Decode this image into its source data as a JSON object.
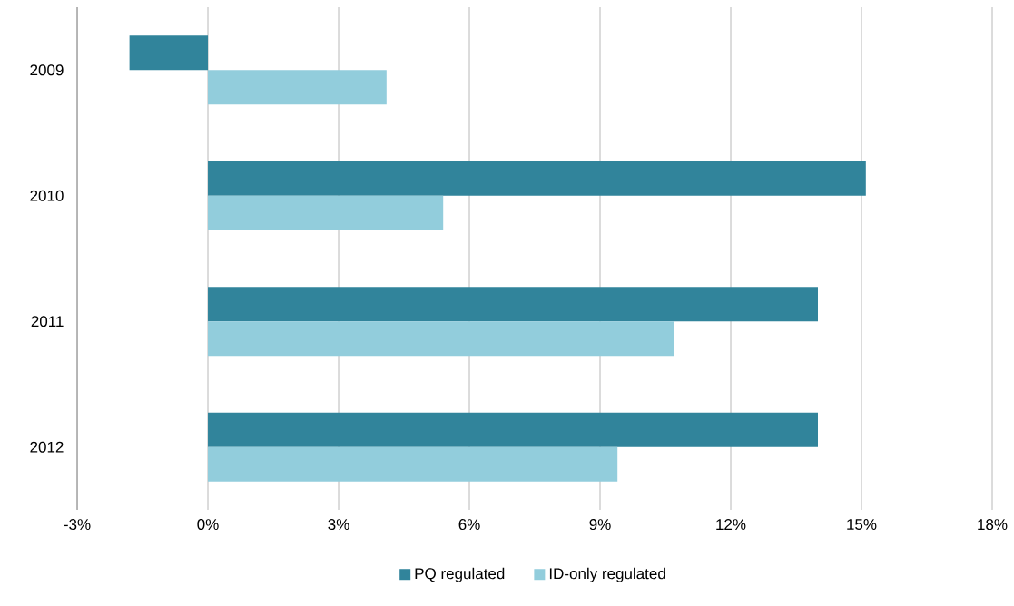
{
  "chart_data": {
    "type": "bar",
    "orientation": "horizontal",
    "categories": [
      "2009",
      "2010",
      "2011",
      "2012"
    ],
    "series": [
      {
        "name": "PQ regulated",
        "color": "#31849b",
        "values": [
          -1.8,
          15.1,
          14.0,
          14.0
        ]
      },
      {
        "name": "ID-only regulated",
        "color": "#92cddc",
        "values": [
          4.1,
          5.4,
          10.7,
          9.4
        ]
      }
    ],
    "xlim": [
      -3,
      18
    ],
    "xticks": [
      {
        "value": -3,
        "label": "-3%"
      },
      {
        "value": 0,
        "label": "0%"
      },
      {
        "value": 3,
        "label": "3%"
      },
      {
        "value": 6,
        "label": "6%"
      },
      {
        "value": 9,
        "label": "9%"
      },
      {
        "value": 12,
        "label": "12%"
      },
      {
        "value": 15,
        "label": "15%"
      },
      {
        "value": 18,
        "label": "18%"
      }
    ],
    "grid": "x",
    "legend": "bottom"
  }
}
